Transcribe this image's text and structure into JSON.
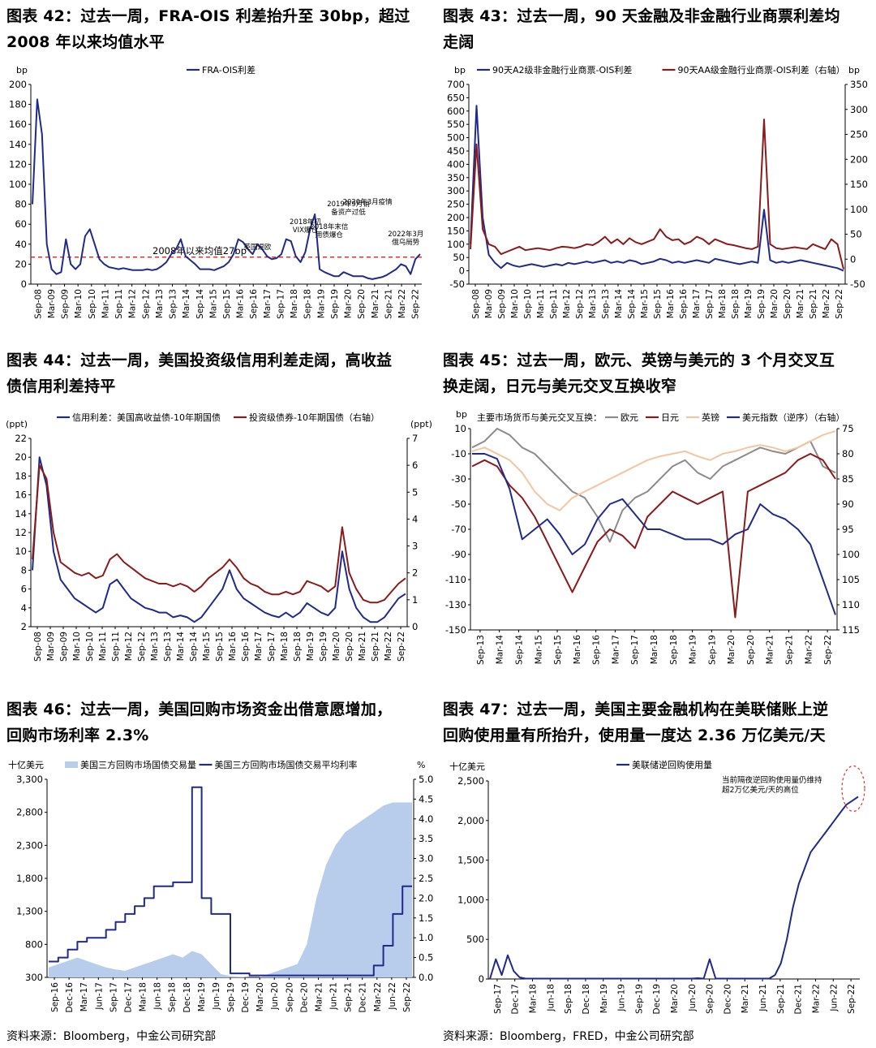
{
  "titles": {
    "c42": [
      "图表 42：过去一周，FRA-OIS 利差抬升至 30bp，超过",
      "2008 年以来均值水平"
    ],
    "c43": [
      "图表 43：过去一周，90 天金融及非金融行业商票利差均",
      "走阔"
    ],
    "c44": [
      "图表 44：过去一周，美国投资级信用利差走阔，高收益",
      "债信用利差持平"
    ],
    "c45": [
      "图表 45：过去一周，欧元、英镑与美元的 3 个月交叉互",
      "换走阔，日元与美元交叉互换收窄"
    ],
    "c46": [
      "图表 46：过去一周，美国回购市场资金出借意愿增加，",
      "回购市场利率 2.3%"
    ],
    "c47": [
      "图表 47：过去一周，美国主要金融机构在美联储账上逆",
      "回购使用量有所抬升，使用量一度达 2.36 万亿美元/天"
    ]
  },
  "sources": {
    "left": "资料来源：Bloomberg，中金公司研究部",
    "right": "资料来源：Bloomberg，FRED，中金公司研究部"
  },
  "chart_data": [
    {
      "id": "c42",
      "type": "line",
      "unit_left": "bp",
      "y_left": {
        "min": 0,
        "max": 200,
        "ticks": [
          0,
          20,
          40,
          60,
          80,
          100,
          120,
          140,
          160,
          180,
          200
        ]
      },
      "x_ticks": [
        "Sep-08",
        "Mar-09",
        "Sep-09",
        "Mar-10",
        "Sep-10",
        "Mar-11",
        "Sep-11",
        "Mar-12",
        "Sep-12",
        "Mar-13",
        "Sep-13",
        "Mar-14",
        "Sep-14",
        "Mar-15",
        "Sep-15",
        "Mar-16",
        "Sep-16",
        "Mar-17",
        "Sep-17",
        "Mar-18",
        "Sep-18",
        "Mar-19",
        "Sep-19",
        "Mar-20",
        "Sep-20",
        "Mar-21",
        "Sep-21",
        "Mar-22",
        "Sep-22"
      ],
      "series": [
        {
          "name": "FRA-OIS利差",
          "color": "#1f2a8c",
          "axis": "left",
          "values": [
            80,
            185,
            150,
            40,
            15,
            10,
            12,
            45,
            20,
            15,
            20,
            48,
            55,
            40,
            25,
            20,
            17,
            16,
            15,
            16,
            15,
            14,
            14,
            14,
            15,
            14,
            15,
            18,
            22,
            30,
            35,
            45,
            28,
            24,
            20,
            15,
            15,
            15,
            14,
            16,
            18,
            22,
            30,
            45,
            42,
            35,
            30,
            40,
            35,
            28,
            25,
            26,
            30,
            45,
            43,
            28,
            22,
            32,
            55,
            70,
            15,
            12,
            10,
            8,
            8,
            12,
            10,
            8,
            8,
            8,
            6,
            5,
            6,
            7,
            9,
            12,
            15,
            20,
            18,
            10,
            25,
            30
          ]
        }
      ],
      "hline": {
        "value": 27,
        "label": "2008年以来均值27bp",
        "color": "#e0302a"
      },
      "annotations": [
        {
          "text": [
            "英国退欧"
          ],
          "x_index": 47,
          "y": 35
        },
        {
          "text": [
            "2018年初",
            "VIX爆仓"
          ],
          "x_index": 57,
          "y": 52
        },
        {
          "text": [
            "2018年末信",
            "用债爆仓"
          ],
          "x_index": 62,
          "y": 47
        },
        {
          "text": [
            "2019年9月销",
            "备资产过低"
          ],
          "x_index": 66,
          "y": 70
        },
        {
          "text": [
            "2020年3月疫情"
          ],
          "x_index": 70,
          "y": 80
        },
        {
          "text": [
            "2022年3月",
            "俄乌局势"
          ],
          "x_index": 78,
          "y": 40
        }
      ]
    },
    {
      "id": "c43",
      "type": "line",
      "unit_left": "bp",
      "unit_right": "bp",
      "y_left": {
        "min": -50,
        "max": 700,
        "ticks": [
          -50,
          0,
          50,
          100,
          150,
          200,
          250,
          300,
          350,
          400,
          450,
          500,
          550,
          600,
          650,
          700
        ]
      },
      "y_right": {
        "min": -50,
        "max": 350,
        "ticks": [
          -50,
          0,
          50,
          100,
          150,
          200,
          250,
          300,
          350
        ]
      },
      "x_ticks": [
        "Sep-08",
        "Mar-09",
        "Sep-09",
        "Mar-10",
        "Sep-10",
        "Mar-11",
        "Sep-11",
        "Mar-12",
        "Sep-12",
        "Mar-13",
        "Sep-13",
        "Mar-14",
        "Sep-14",
        "Mar-15",
        "Sep-15",
        "Mar-16",
        "Sep-16",
        "Mar-17",
        "Sep-17",
        "Mar-18",
        "Sep-18",
        "Mar-19",
        "Sep-19",
        "Mar-20",
        "Sep-20",
        "Mar-21",
        "Sep-21",
        "Mar-22",
        "Sep-22"
      ],
      "series": [
        {
          "name": "90天A2级非金融行业商票-OIS利差",
          "color": "#1f2a8c",
          "axis": "left",
          "values": [
            100,
            620,
            200,
            60,
            30,
            10,
            30,
            20,
            15,
            20,
            25,
            20,
            15,
            20,
            25,
            20,
            30,
            25,
            30,
            35,
            30,
            35,
            40,
            30,
            35,
            30,
            40,
            35,
            25,
            30,
            35,
            45,
            40,
            30,
            35,
            30,
            35,
            40,
            35,
            30,
            45,
            40,
            35,
            30,
            25,
            30,
            35,
            30,
            230,
            40,
            30,
            35,
            30,
            35,
            40,
            35,
            30,
            25,
            20,
            15,
            10,
            0
          ]
        },
        {
          "name": "90天AA级金融行业商票-OIS利差（右轴）",
          "color": "#8b1a1a",
          "axis": "right",
          "values": [
            20,
            230,
            60,
            30,
            25,
            10,
            15,
            20,
            25,
            18,
            20,
            22,
            20,
            18,
            22,
            25,
            24,
            22,
            25,
            30,
            28,
            35,
            45,
            32,
            40,
            30,
            42,
            34,
            30,
            35,
            40,
            60,
            45,
            38,
            40,
            30,
            35,
            45,
            40,
            30,
            40,
            35,
            30,
            28,
            25,
            22,
            20,
            25,
            280,
            30,
            22,
            20,
            22,
            24,
            22,
            20,
            30,
            25,
            20,
            40,
            30,
            -20
          ]
        }
      ]
    },
    {
      "id": "c44",
      "type": "line",
      "unit_left": "(ppt)",
      "unit_right": "(ppt)",
      "y_left": {
        "min": 2,
        "max": 22,
        "ticks": [
          2,
          4,
          6,
          8,
          10,
          12,
          14,
          16,
          18,
          20,
          22
        ]
      },
      "y_right": {
        "min": 0,
        "max": 7,
        "ticks": [
          0,
          1,
          2,
          3,
          4,
          5,
          6,
          7
        ]
      },
      "x_ticks": [
        "Sep-08",
        "Mar-09",
        "Sep-09",
        "Mar-10",
        "Sep-10",
        "Mar-11",
        "Sep-11",
        "Mar-12",
        "Sep-12",
        "Mar-13",
        "Sep-13",
        "Mar-14",
        "Sep-14",
        "Mar-15",
        "Sep-15",
        "Mar-16",
        "Sep-16",
        "Mar-17",
        "Sep-17",
        "Mar-18",
        "Sep-18",
        "Mar-19",
        "Sep-19",
        "Mar-20",
        "Sep-20",
        "Mar-21",
        "Sep-21",
        "Mar-22",
        "Sep-22"
      ],
      "series": [
        {
          "name": "信用利差：美国高收益债-10年期国债",
          "color": "#1f2a8c",
          "axis": "left",
          "values": [
            8,
            20,
            17,
            10,
            7,
            6,
            5,
            4.5,
            4,
            3.5,
            4,
            6.5,
            7,
            6,
            5,
            4.5,
            4,
            3.8,
            3.5,
            3.5,
            3,
            3.2,
            3,
            2.5,
            3,
            4,
            5,
            6,
            8,
            6,
            5,
            4.5,
            4,
            3.5,
            3.2,
            3,
            3.5,
            3,
            3.5,
            4.5,
            4,
            3.5,
            3.2,
            4,
            10,
            6,
            4,
            3,
            2.5,
            2.5,
            3,
            4,
            5,
            5.5
          ]
        },
        {
          "name": "投资级债券-10年期国债（右轴）",
          "color": "#8b1a1a",
          "axis": "right",
          "values": [
            2.5,
            6,
            5.5,
            3.5,
            2.4,
            2.2,
            2,
            1.9,
            2,
            1.8,
            1.9,
            2.5,
            2.7,
            2.4,
            2.2,
            2,
            1.8,
            1.7,
            1.6,
            1.6,
            1.5,
            1.6,
            1.5,
            1.3,
            1.5,
            1.8,
            2,
            2.2,
            2.5,
            2.2,
            1.8,
            1.6,
            1.5,
            1.3,
            1.2,
            1.2,
            1.3,
            1.2,
            1.3,
            1.7,
            1.6,
            1.5,
            1.3,
            1.5,
            3.7,
            2,
            1.4,
            1,
            0.9,
            0.9,
            1,
            1.3,
            1.6,
            1.8
          ]
        }
      ]
    },
    {
      "id": "c45",
      "type": "line",
      "unit_left": "bp",
      "y_left": {
        "min": -150,
        "max": 10,
        "ticks": [
          -150,
          -130,
          -110,
          -90,
          -70,
          -50,
          -30,
          -10,
          10
        ]
      },
      "y_right": {
        "min": 115,
        "max": 75,
        "reversed": true,
        "ticks": [
          75,
          80,
          85,
          90,
          95,
          100,
          105,
          110,
          115
        ]
      },
      "x_ticks": [
        "Sep-13",
        "Mar-14",
        "Sep-14",
        "Mar-15",
        "Sep-15",
        "Mar-16",
        "Sep-16",
        "Mar-17",
        "Sep-17",
        "Mar-18",
        "Sep-18",
        "Mar-19",
        "Sep-19",
        "Mar-20",
        "Sep-20",
        "Mar-21",
        "Sep-21",
        "Mar-22",
        "Sep-22"
      ],
      "legend_title": "主要市场货币与美元交叉互换：",
      "series": [
        {
          "name": "欧元",
          "color": "#8c8c8c",
          "axis": "left",
          "values": [
            -5,
            0,
            10,
            5,
            -5,
            -10,
            -20,
            -30,
            -40,
            -45,
            -60,
            -80,
            -55,
            -45,
            -40,
            -30,
            -20,
            -15,
            -25,
            -30,
            -20,
            -15,
            -10,
            -5,
            -8,
            -10,
            -5,
            0,
            -20,
            -25
          ]
        },
        {
          "name": "日元",
          "color": "#8b1a1a",
          "axis": "left",
          "values": [
            -20,
            -15,
            -20,
            -35,
            -45,
            -60,
            -80,
            -100,
            -120,
            -100,
            -80,
            -70,
            -75,
            -85,
            -60,
            -50,
            -40,
            -45,
            -50,
            -45,
            -40,
            -140,
            -40,
            -35,
            -30,
            -25,
            -15,
            -10,
            -15,
            -30
          ]
        },
        {
          "name": "英镑",
          "color": "#f5c4a0",
          "axis": "left",
          "values": [
            -8,
            -5,
            -10,
            -15,
            -25,
            -40,
            -50,
            -55,
            -45,
            -40,
            -35,
            -30,
            -25,
            -20,
            -15,
            -12,
            -10,
            -8,
            -12,
            -15,
            -10,
            -8,
            -5,
            -3,
            -5,
            -8,
            -5,
            0,
            5,
            8
          ]
        },
        {
          "name": "美元指数（逆序）（右轴）",
          "color": "#1f2a8c",
          "axis": "right",
          "values": [
            80,
            80,
            81,
            87,
            97,
            95,
            93,
            96,
            100,
            98,
            93,
            90,
            89,
            92,
            95,
            95,
            96,
            97,
            97,
            97,
            98,
            96,
            95,
            90,
            92,
            93,
            95,
            98,
            105,
            112
          ]
        }
      ]
    },
    {
      "id": "c46",
      "type": "area",
      "unit_left": "十亿美元",
      "unit_right": "%",
      "y_left": {
        "min": 300,
        "max": 3300,
        "ticks": [
          300,
          800,
          1300,
          1800,
          2300,
          2800,
          3300
        ]
      },
      "y_right": {
        "min": 0,
        "max": 5,
        "ticks": [
          0.0,
          0.5,
          1.0,
          1.5,
          2.0,
          2.5,
          3.0,
          3.5,
          4.0,
          4.5,
          5.0
        ]
      },
      "x_ticks": [
        "Sep-16",
        "Dec-16",
        "Mar-17",
        "Jun-17",
        "Sep-17",
        "Dec-17",
        "Mar-18",
        "Jun-18",
        "Sep-18",
        "Dec-18",
        "Mar-19",
        "Jun-19",
        "Sep-19",
        "Dec-19",
        "Mar-20",
        "Jun-20",
        "Sep-20",
        "Dec-20",
        "Mar-21",
        "Jun-21",
        "Sep-21",
        "Dec-21",
        "Mar-22",
        "Jun-22",
        "Sep-22"
      ],
      "series": [
        {
          "name": "美国三方回购市场国债交易量",
          "color": "#b7cdeb",
          "axis": "left",
          "values": [
            450,
            500,
            550,
            600,
            550,
            500,
            450,
            420,
            400,
            450,
            500,
            550,
            600,
            650,
            600,
            700,
            650,
            500,
            350,
            320,
            310,
            300,
            300,
            350,
            400,
            450,
            500,
            800,
            1500,
            2000,
            2300,
            2500,
            2600,
            2700,
            2800,
            2900,
            2950,
            2950,
            2950
          ]
        },
        {
          "name": "美国三方回购市场国债交易平均利率",
          "color": "#1f2a8c",
          "axis": "right",
          "values": [
            0.4,
            0.5,
            0.7,
            0.9,
            1.0,
            1.0,
            1.2,
            1.4,
            1.6,
            1.8,
            2.0,
            2.3,
            2.3,
            2.4,
            2.4,
            4.8,
            2.0,
            1.6,
            1.6,
            0.1,
            0.1,
            0.05,
            0.05,
            0.05,
            0.05,
            0.05,
            0.05,
            0.05,
            0.05,
            0.05,
            0.05,
            0.05,
            0.05,
            0.05,
            0.3,
            0.8,
            1.6,
            2.3,
            2.3
          ]
        }
      ]
    },
    {
      "id": "c47",
      "type": "line",
      "unit_left": "十亿美元",
      "y_left": {
        "min": 0,
        "max": 2500,
        "ticks": [
          0,
          500,
          1000,
          1500,
          2000,
          2500
        ]
      },
      "x_ticks": [
        "Sep-17",
        "Dec-17",
        "Mar-18",
        "Jun-18",
        "Sep-18",
        "Dec-18",
        "Mar-19",
        "Jun-19",
        "Sep-19",
        "Dec-19",
        "Mar-20",
        "Jun-20",
        "Sep-20",
        "Dec-20",
        "Mar-21",
        "Jun-21",
        "Sep-21",
        "Dec-21",
        "Mar-22",
        "Jun-22",
        "Sep-22"
      ],
      "series": [
        {
          "name": "美联储逆回购使用量",
          "color": "#1f2a8c",
          "axis": "left",
          "values": [
            0,
            250,
            50,
            300,
            100,
            20,
            5,
            5,
            5,
            5,
            5,
            5,
            5,
            5,
            5,
            5,
            5,
            5,
            5,
            5,
            5,
            5,
            5,
            5,
            5,
            5,
            5,
            5,
            5,
            5,
            5,
            5,
            5,
            5,
            5,
            10,
            5,
            250,
            5,
            5,
            5,
            5,
            5,
            5,
            5,
            5,
            5,
            5,
            50,
            200,
            500,
            900,
            1200,
            1400,
            1600,
            1700,
            1800,
            1900,
            2000,
            2100,
            2200,
            2250,
            2300
          ]
        }
      ],
      "annotation": {
        "text": [
          "当前隔夜逆回购使用量仍维持",
          "超2万亿美元/天的高位"
        ]
      }
    }
  ]
}
